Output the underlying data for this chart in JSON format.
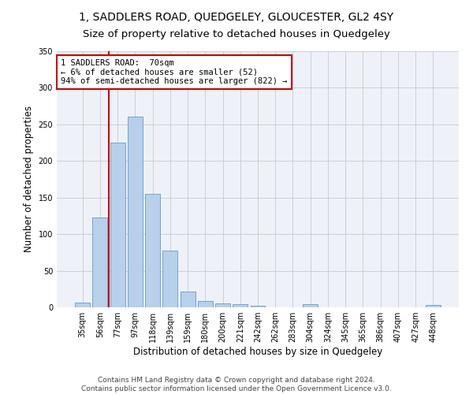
{
  "title": "1, SADDLERS ROAD, QUEDGELEY, GLOUCESTER, GL2 4SY",
  "subtitle": "Size of property relative to detached houses in Quedgeley",
  "xlabel": "Distribution of detached houses by size in Quedgeley",
  "ylabel": "Number of detached properties",
  "categories": [
    "35sqm",
    "56sqm",
    "77sqm",
    "97sqm",
    "118sqm",
    "139sqm",
    "159sqm",
    "180sqm",
    "200sqm",
    "221sqm",
    "242sqm",
    "262sqm",
    "283sqm",
    "304sqm",
    "324sqm",
    "345sqm",
    "365sqm",
    "386sqm",
    "407sqm",
    "427sqm",
    "448sqm"
  ],
  "values": [
    6,
    123,
    225,
    261,
    155,
    78,
    22,
    9,
    5,
    4,
    2,
    0,
    0,
    4,
    0,
    0,
    0,
    0,
    0,
    0,
    3
  ],
  "bar_color": "#b8d0ea",
  "bar_edge_color": "#6699cc",
  "vline_color": "#cc0000",
  "vline_x": 1.5,
  "annotation_text": "1 SADDLERS ROAD:  70sqm\n← 6% of detached houses are smaller (52)\n94% of semi-detached houses are larger (822) →",
  "annotation_box_color": "#ffffff",
  "annotation_box_edge": "#cc0000",
  "ylim": [
    0,
    350
  ],
  "yticks": [
    0,
    50,
    100,
    150,
    200,
    250,
    300,
    350
  ],
  "footer_line1": "Contains HM Land Registry data © Crown copyright and database right 2024.",
  "footer_line2": "Contains public sector information licensed under the Open Government Licence v3.0.",
  "background_color": "#ffffff",
  "plot_bg_color": "#eef2f8",
  "grid_color": "#c8c8d0",
  "title_fontsize": 10,
  "subtitle_fontsize": 9.5,
  "axis_label_fontsize": 8.5,
  "tick_fontsize": 7,
  "annot_fontsize": 7.5,
  "footer_fontsize": 6.5
}
